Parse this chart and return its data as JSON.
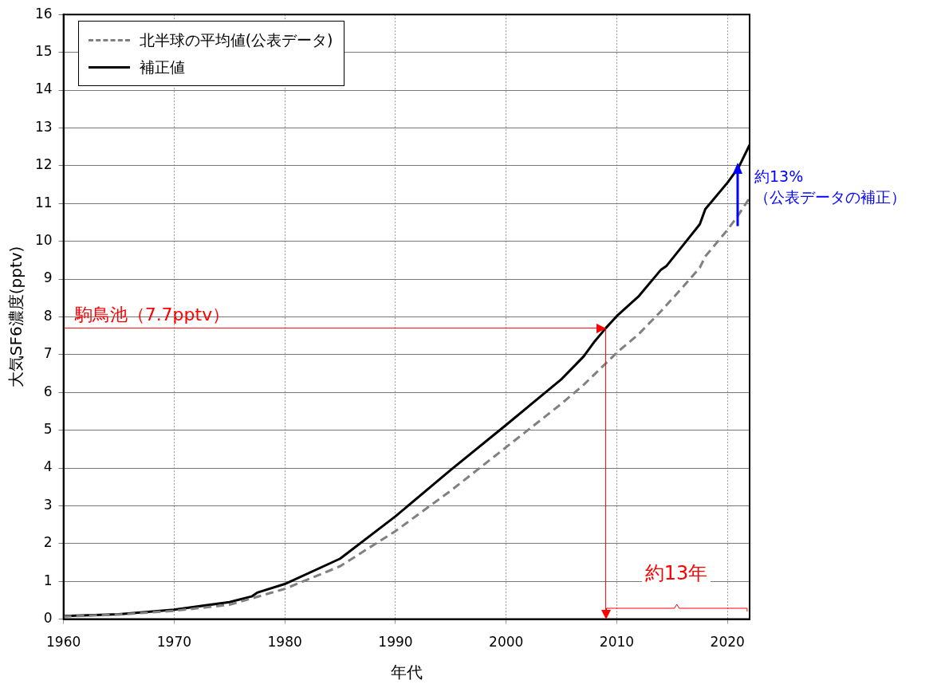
{
  "chart_data": {
    "type": "line",
    "xlabel": "年代",
    "ylabel": "大気SF6濃度(pptv)",
    "xlim": [
      1960,
      2022
    ],
    "xticks": [
      1960,
      1970,
      1980,
      1990,
      2000,
      2010,
      2020
    ],
    "ylim": [
      0,
      16
    ],
    "yticks": [
      0,
      1,
      2,
      3,
      4,
      5,
      6,
      7,
      8,
      9,
      10,
      11,
      12,
      13,
      14,
      15,
      16
    ],
    "grid": true,
    "legend": "top left",
    "marker": "none",
    "series": [
      {
        "name": "北半球の平均値(公表データ)",
        "color": "#808080",
        "line_style": "dashed",
        "x": [
          1960,
          1965,
          1970,
          1975,
          1980,
          1985,
          1990,
          1995,
          2000,
          2005,
          2007,
          2010,
          2012,
          2014,
          2016,
          2017.5,
          2018,
          2020,
          2021,
          2022
        ],
        "values": [
          0.07,
          0.12,
          0.22,
          0.38,
          0.8,
          1.4,
          2.33,
          3.4,
          4.55,
          5.7,
          6.2,
          7.05,
          7.55,
          8.15,
          8.8,
          9.3,
          9.6,
          10.3,
          10.7,
          11.15
        ]
      },
      {
        "name": "補正値",
        "color": "#000000",
        "line_style": "solid",
        "x": [
          1960,
          1965,
          1970,
          1975,
          1977,
          1977.5,
          1980,
          1985,
          1990,
          1995,
          2000,
          2005,
          2007,
          2008,
          2009,
          2010,
          2012,
          2014,
          2014.5,
          2016,
          2017.5,
          2018,
          2020,
          2021,
          2022
        ],
        "values": [
          0.08,
          0.13,
          0.25,
          0.45,
          0.6,
          0.7,
          0.93,
          1.6,
          2.72,
          3.95,
          5.14,
          6.35,
          6.95,
          7.35,
          7.7,
          8.02,
          8.55,
          9.25,
          9.35,
          9.9,
          10.45,
          10.85,
          11.55,
          11.95,
          12.55
        ]
      }
    ],
    "ref_lines": [
      {
        "axis": "y",
        "value": 7.7,
        "label": "駒鳥池（7.7pptv）",
        "color": "#ff0000"
      },
      {
        "axis": "x",
        "value": 2009,
        "color": "#ff0000"
      }
    ],
    "annotations": [
      "約13年",
      "約13%\n（公表データの補正）"
    ]
  }
}
